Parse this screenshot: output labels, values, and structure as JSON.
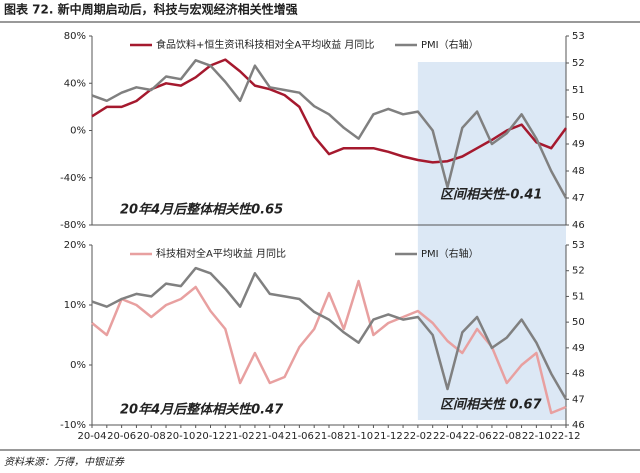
{
  "title": "图表 72. 新中周期启动后，科技与宏观经济相关性增强",
  "source": "资料来源：万得，中银证券",
  "chart_data": [
    {
      "type": "line",
      "ylim": [
        -80,
        80
      ],
      "yticks": [
        {
          "value": -80,
          "label": "-80%"
        },
        {
          "value": -40,
          "label": "-40%"
        },
        {
          "value": 0,
          "label": "0%"
        },
        {
          "value": 40,
          "label": "40%"
        },
        {
          "value": 80,
          "label": "80%"
        }
      ],
      "y2lim": [
        46,
        53
      ],
      "y2ticks": [
        46,
        47,
        48,
        49,
        50,
        51,
        52,
        53
      ],
      "series": [
        {
          "name": "食品饮料+恒生资讯科技相对全A平均收益 月同比",
          "color": "#a5192e",
          "values": [
            12,
            20,
            20,
            25,
            35,
            40,
            38,
            45,
            55,
            60,
            50,
            38,
            35,
            30,
            20,
            -5,
            -20,
            -15,
            -15,
            -15,
            -18,
            -22,
            -25,
            -27,
            -26,
            -22,
            -15,
            -8,
            0,
            5,
            -10,
            -15,
            2
          ]
        },
        {
          "name": "PMI（右轴）",
          "color": "#808080",
          "axis": "y2",
          "values": [
            50.8,
            50.6,
            50.9,
            51.1,
            51.0,
            51.5,
            51.4,
            52.1,
            51.9,
            51.3,
            50.6,
            51.9,
            51.1,
            51.0,
            50.9,
            50.4,
            50.1,
            49.6,
            49.2,
            50.1,
            50.3,
            50.1,
            50.2,
            49.5,
            47.4,
            49.6,
            50.2,
            49.0,
            49.4,
            50.1,
            49.2,
            48.0,
            47.0
          ]
        }
      ],
      "annotations": [
        "20年4月后整体相关性0.65",
        "区间相关性-0.41"
      ]
    },
    {
      "type": "line",
      "categories": [
        "20-04",
        null,
        "20-06",
        null,
        "20-08",
        null,
        "20-10",
        null,
        "20-12",
        null,
        "21-02",
        null,
        "21-04",
        null,
        "21-06",
        null,
        "21-08",
        null,
        "21-10",
        null,
        "21-12",
        null,
        "22-02",
        null,
        "22-04",
        null,
        "22-06",
        null,
        "22-08",
        null,
        "22-10",
        null,
        "22-12"
      ],
      "ylim": [
        -10,
        20
      ],
      "yticks": [
        {
          "value": -10,
          "label": "-10%"
        },
        {
          "value": 0,
          "label": "0%"
        },
        {
          "value": 10,
          "label": "10%"
        },
        {
          "value": 20,
          "label": "20%"
        }
      ],
      "y2lim": [
        46,
        53
      ],
      "y2ticks": [
        46,
        47,
        48,
        49,
        50,
        51,
        52,
        53
      ],
      "series": [
        {
          "name": "科技相对全A平均收益 月同比",
          "color": "#e8a0a0",
          "values": [
            7,
            5,
            11,
            10,
            8,
            10,
            11,
            13,
            9,
            6,
            -3,
            2,
            -3,
            -2,
            3,
            6,
            12,
            6,
            14,
            5,
            7,
            8,
            9,
            7,
            4,
            2,
            6,
            3,
            -3,
            0,
            2,
            -8,
            -7
          ]
        },
        {
          "name": "PMI（右轴）",
          "color": "#808080",
          "axis": "y2",
          "values": [
            50.8,
            50.6,
            50.9,
            51.1,
            51.0,
            51.5,
            51.4,
            52.1,
            51.9,
            51.3,
            50.6,
            51.9,
            51.1,
            51.0,
            50.9,
            50.4,
            50.1,
            49.6,
            49.2,
            50.1,
            50.3,
            50.1,
            50.2,
            49.5,
            47.4,
            49.6,
            50.2,
            49.0,
            49.4,
            50.1,
            49.2,
            48.0,
            47.0
          ]
        }
      ],
      "annotations": [
        "20年4月后整体相关性0.47",
        "区间相关性 0.67"
      ]
    }
  ]
}
